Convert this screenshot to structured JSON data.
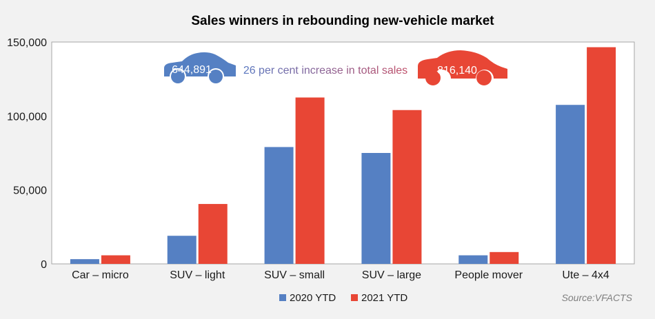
{
  "chart_data": {
    "type": "bar",
    "title": "Sales winners in rebounding new-vehicle market",
    "categories": [
      "Car – micro",
      "SUV – light",
      "SUV – small",
      "SUV – large",
      "People mover",
      "Ute – 4x4"
    ],
    "series": [
      {
        "name": "2020 YTD",
        "color": "#5580c3",
        "values": [
          3200,
          19000,
          79000,
          75000,
          5800,
          107500
        ]
      },
      {
        "name": "2021 YTD",
        "color": "#e84635",
        "values": [
          5800,
          40500,
          112500,
          104000,
          8000,
          146500
        ]
      }
    ],
    "ylim": [
      0,
      150000
    ],
    "yticks": [
      0,
      50000,
      100000,
      150000
    ],
    "ytick_labels": [
      "0",
      "50,000",
      "100,000",
      "150,000"
    ],
    "grid": false,
    "legend_position": "bottom",
    "annotations": {
      "total_2020": "644,891",
      "total_2021": "816,140",
      "increase_text": "26 per cent increase in total sales"
    },
    "source": "Source:VFACTS"
  }
}
